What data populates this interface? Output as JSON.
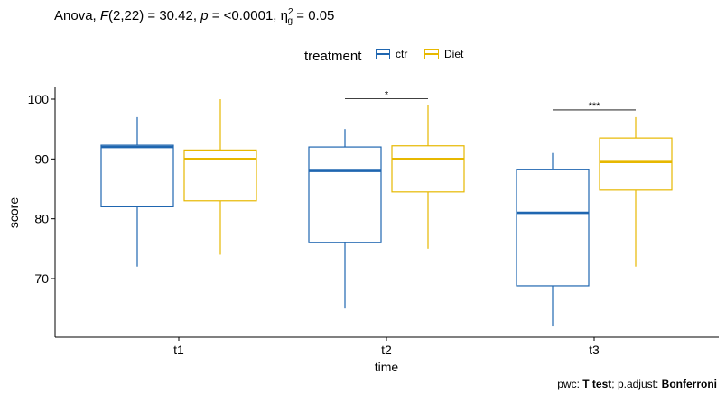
{
  "chart_data": {
    "type": "boxplot",
    "title_parts": {
      "prefix": "Anova, ",
      "stat_name": "F",
      "df": "(2,22) = 30.42, ",
      "p_name": "p",
      "p_value": " = <0.0001, ",
      "eta_sup": "2",
      "eta_sub": "g",
      "eta_value": " = 0.05"
    },
    "xlabel": "time",
    "ylabel": "score",
    "categories": [
      "t1",
      "t2",
      "t3"
    ],
    "ylim": [
      60,
      102
    ],
    "yticks": [
      70,
      80,
      90,
      100
    ],
    "legend": {
      "title": "treatment",
      "position": "top"
    },
    "series": [
      {
        "name": "ctr",
        "color": "#1F66B0",
        "boxes": [
          {
            "min": 72,
            "q1": 82,
            "median": 92,
            "q3": 92.3,
            "max": 97
          },
          {
            "min": 65,
            "q1": 76,
            "median": 88,
            "q3": 92,
            "max": 95
          },
          {
            "min": 62,
            "q1": 68.8,
            "median": 81,
            "q3": 88.2,
            "max": 91
          }
        ]
      },
      {
        "name": "Diet",
        "color": "#E7B800",
        "boxes": [
          {
            "min": 74,
            "q1": 83,
            "median": 90,
            "q3": 91.5,
            "max": 100
          },
          {
            "min": 75,
            "q1": 84.5,
            "median": 90,
            "q3": 92.2,
            "max": 99
          },
          {
            "min": 72,
            "q1": 84.8,
            "median": 89.5,
            "q3": 93.5,
            "max": 97
          }
        ]
      }
    ],
    "significance": [
      {
        "category": "t2",
        "label": "*",
        "y": 100.1
      },
      {
        "category": "t3",
        "label": "***",
        "y": 98.2
      }
    ],
    "caption": {
      "pwc_label": "pwc: ",
      "pwc_value": "T test",
      "adjust_label": "; p.adjust: ",
      "adjust_value": "Bonferroni"
    }
  }
}
